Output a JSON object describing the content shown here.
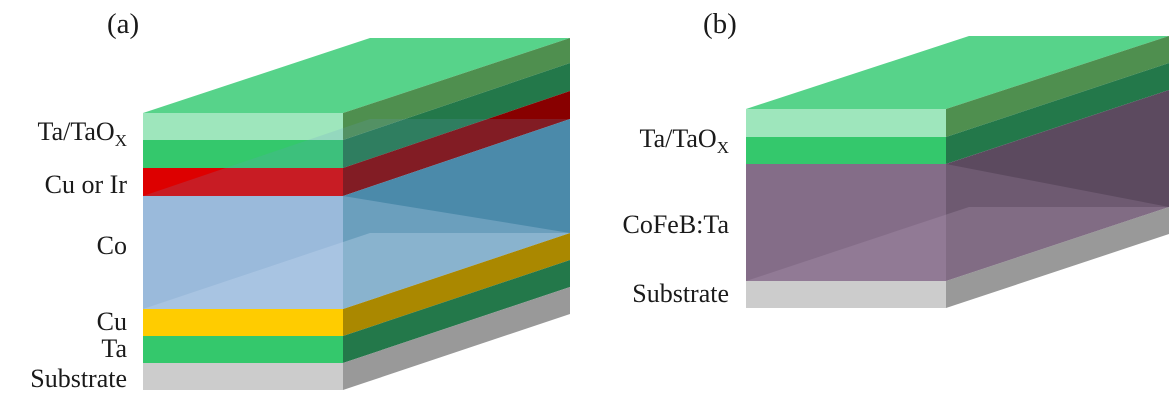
{
  "panels": [
    {
      "label": "(a)",
      "layers": [
        {
          "name": "Ta/TaOx",
          "text": "Ta/TaO",
          "sub": "X",
          "colors": {
            "top": "#57d38a",
            "front": "#9ee6bc",
            "side": "#4f8f4f"
          }
        },
        {
          "name": "Ta-cap-green",
          "text": "",
          "colors": {
            "front": "#34c86c",
            "side": "#23784a"
          }
        },
        {
          "name": "Cu or Ir",
          "text": "Cu or Ir",
          "colors": {
            "front": "#dd0000",
            "side": "#880000"
          }
        },
        {
          "name": "Co",
          "text": "Co",
          "colors": {
            "front": "#8fb0d4",
            "side": "#4b8aaa"
          }
        },
        {
          "name": "Cu",
          "text": "Cu",
          "colors": {
            "front": "#ffcc00",
            "side": "#aa8800"
          }
        },
        {
          "name": "Ta",
          "text": "Ta",
          "colors": {
            "front": "#34c86c",
            "side": "#23784a"
          }
        },
        {
          "name": "Substrate",
          "text": "Substrate",
          "colors": {
            "front": "#cccccc",
            "side": "#999999"
          }
        }
      ]
    },
    {
      "label": "(b)",
      "layers": [
        {
          "name": "Ta/TaOx",
          "text": "Ta/TaO",
          "sub": "X",
          "colors": {
            "top": "#57d38a",
            "front": "#9ee6bc",
            "side": "#4f8f4f"
          }
        },
        {
          "name": "Ta-cap-green",
          "text": "",
          "colors": {
            "front": "#34c86c",
            "side": "#23784a"
          }
        },
        {
          "name": "CoFeB:Ta",
          "text": "CoFeB:Ta",
          "colors": {
            "front": "#7a637e",
            "side": "#5c4a5f"
          }
        },
        {
          "name": "Substrate",
          "text": "Substrate",
          "colors": {
            "front": "#cccccc",
            "side": "#999999"
          }
        }
      ]
    }
  ]
}
